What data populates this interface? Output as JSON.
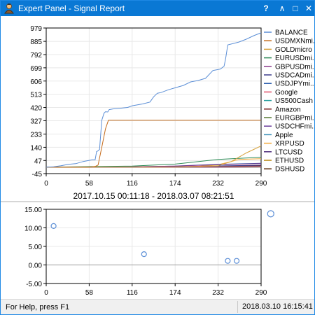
{
  "window": {
    "title": "Expert Panel - Signal Report",
    "help_label": "?",
    "min_label": "∧",
    "max_label": "□",
    "close_label": "✕"
  },
  "status": {
    "help_text": "For Help, press F1",
    "datetime": "2018.03.10 16:15:41"
  },
  "chart_data": [
    {
      "type": "line",
      "xlabel": "2017.10.15 00:11:18 - 2018.03.07 08:21:51",
      "x_ticks": [
        "0",
        "58",
        "116",
        "174",
        "232",
        "290"
      ],
      "y_ticks": [
        "979",
        "885",
        "792",
        "699",
        "606",
        "513",
        "420",
        "327",
        "233",
        "140",
        "47",
        "-45"
      ],
      "xlim": [
        0,
        290
      ],
      "ylim": [
        -45,
        979
      ],
      "legend_position": "right",
      "series": [
        {
          "name": "BALANCE",
          "color": "#5b8ed6",
          "x": [
            0,
            10,
            20,
            30,
            40,
            50,
            58,
            62,
            66,
            68,
            70,
            72,
            75,
            78,
            80,
            83,
            85,
            90,
            100,
            110,
            116,
            130,
            140,
            145,
            150,
            155,
            165,
            175,
            185,
            195,
            205,
            215,
            225,
            235,
            240,
            242,
            245,
            260,
            270,
            280,
            290
          ],
          "y": [
            0,
            3,
            10,
            20,
            25,
            40,
            48,
            52,
            52,
            110,
            115,
            125,
            330,
            380,
            390,
            388,
            405,
            410,
            415,
            420,
            432,
            445,
            458,
            495,
            520,
            525,
            545,
            560,
            575,
            600,
            610,
            625,
            680,
            690,
            710,
            760,
            860,
            880,
            900,
            925,
            945
          ]
        },
        {
          "name": "USDMXNmi...",
          "color": "#c46a1a",
          "x": [
            0,
            58,
            66,
            70,
            75,
            80,
            84,
            290
          ],
          "y": [
            0,
            0,
            5,
            15,
            140,
            270,
            330,
            330
          ]
        },
        {
          "name": "GOLDmicro",
          "color": "#d6a13a",
          "x": [
            0,
            100,
            174,
            200,
            232,
            250,
            260,
            270,
            280,
            290
          ],
          "y": [
            0,
            1,
            2,
            5,
            10,
            40,
            70,
            100,
            125,
            150
          ]
        },
        {
          "name": "EURUSDmi...",
          "color": "#2e8b57",
          "x": [
            0,
            116,
            174,
            232,
            290
          ],
          "y": [
            0,
            8,
            22,
            55,
            70
          ]
        },
        {
          "name": "GBPUSDmi...",
          "color": "#8b3a8b",
          "x": [
            0,
            116,
            174,
            232,
            290
          ],
          "y": [
            0,
            3,
            8,
            18,
            25
          ]
        },
        {
          "name": "USDCADmi...",
          "color": "#3b3b8b",
          "x": [
            0,
            116,
            174,
            232,
            290
          ],
          "y": [
            0,
            1,
            4,
            9,
            14
          ]
        },
        {
          "name": "USDJPYmi...",
          "color": "#2255aa",
          "x": [
            0,
            100,
            174,
            232,
            290
          ],
          "y": [
            0,
            2,
            8,
            20,
            28
          ]
        },
        {
          "name": "Google",
          "color": "#e0506a",
          "x": [
            0,
            174,
            232,
            290
          ],
          "y": [
            0,
            1,
            3,
            5
          ]
        },
        {
          "name": "US500Cash",
          "color": "#2aa0a0",
          "x": [
            0,
            174,
            232,
            290
          ],
          "y": [
            0,
            2,
            4,
            6
          ]
        },
        {
          "name": "Amazon",
          "color": "#7a1f1f",
          "x": [
            0,
            174,
            232,
            290
          ],
          "y": [
            0,
            3,
            6,
            9
          ]
        },
        {
          "name": "EURGBPmi...",
          "color": "#557a33",
          "x": [
            0,
            174,
            232,
            290
          ],
          "y": [
            0,
            1,
            2,
            3
          ]
        },
        {
          "name": "USDCHFmi...",
          "color": "#6a3d9a",
          "x": [
            0,
            174,
            232,
            290
          ],
          "y": [
            0,
            0,
            1,
            2
          ]
        },
        {
          "name": "Apple",
          "color": "#3a8fb7",
          "x": [
            0,
            174,
            232,
            290
          ],
          "y": [
            0,
            1,
            2,
            4
          ]
        },
        {
          "name": "XRPUSD",
          "color": "#f2a93b",
          "x": [
            0,
            200,
            232,
            250,
            260,
            290
          ],
          "y": [
            0,
            4,
            18,
            40,
            55,
            60
          ]
        },
        {
          "name": "LTCUSD",
          "color": "#4b2a7a",
          "x": [
            0,
            200,
            232,
            290
          ],
          "y": [
            0,
            2,
            6,
            10
          ]
        },
        {
          "name": "ETHUSD",
          "color": "#b8860b",
          "x": [
            0,
            200,
            232,
            290
          ],
          "y": [
            0,
            1,
            3,
            6
          ]
        },
        {
          "name": "DSHUSD",
          "color": "#5a2a0a",
          "x": [
            0,
            200,
            232,
            290
          ],
          "y": [
            0,
            0,
            1,
            2
          ]
        }
      ]
    },
    {
      "type": "scatter",
      "x_ticks": [
        "0",
        "58",
        "116",
        "174",
        "232",
        "290"
      ],
      "y_ticks": [
        "15.00",
        "10.00",
        "5.00",
        "0.00",
        "-5.00"
      ],
      "xlim": [
        0,
        290
      ],
      "ylim": [
        -5,
        15
      ],
      "points": [
        {
          "x": 10,
          "y": 10.5
        },
        {
          "x": 132,
          "y": 2.9
        },
        {
          "x": 245,
          "y": 1.1
        },
        {
          "x": 257,
          "y": 1.1
        },
        {
          "x": 303,
          "y": 13.8
        }
      ],
      "color": "#5b8ed6"
    }
  ]
}
